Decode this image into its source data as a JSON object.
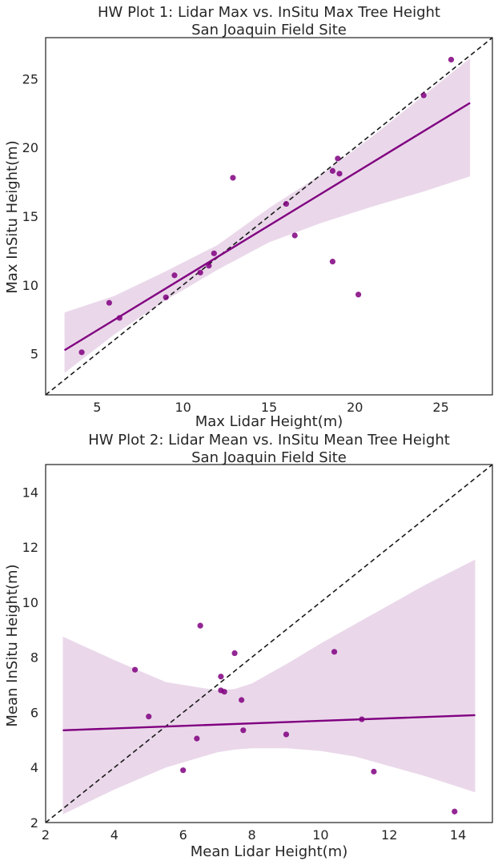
{
  "colors": {
    "accent": "#800080",
    "band": "#ead8ea",
    "identity_line": "#1a1a1a",
    "text": "#262626"
  },
  "chart_data": [
    {
      "type": "scatter",
      "title": "HW Plot 1: Lidar Max vs. InSitu Max Tree Height",
      "subtitle": "San Joaquin Field Site",
      "xlabel": "Max Lidar Height(m)",
      "ylabel": "Max InSitu Height(m)",
      "xlim": [
        2,
        28
      ],
      "ylim": [
        2,
        28
      ],
      "xticks": [
        5,
        10,
        15,
        20,
        25
      ],
      "yticks": [
        5,
        10,
        15,
        20,
        25
      ],
      "grid": false,
      "reference_line": "y = x (dashed)",
      "points": [
        {
          "x": 4.1,
          "y": 5.1
        },
        {
          "x": 5.7,
          "y": 8.7
        },
        {
          "x": 6.3,
          "y": 7.6
        },
        {
          "x": 9.0,
          "y": 9.1
        },
        {
          "x": 9.5,
          "y": 10.7
        },
        {
          "x": 11.0,
          "y": 10.9
        },
        {
          "x": 11.5,
          "y": 11.4
        },
        {
          "x": 11.8,
          "y": 12.3
        },
        {
          "x": 12.9,
          "y": 17.8
        },
        {
          "x": 16.0,
          "y": 15.9
        },
        {
          "x": 16.5,
          "y": 13.6
        },
        {
          "x": 18.7,
          "y": 11.7
        },
        {
          "x": 18.7,
          "y": 18.3
        },
        {
          "x": 19.0,
          "y": 19.2
        },
        {
          "x": 19.1,
          "y": 18.1
        },
        {
          "x": 20.2,
          "y": 9.3
        },
        {
          "x": 24.0,
          "y": 23.8
        },
        {
          "x": 25.6,
          "y": 26.4
        }
      ],
      "regression": {
        "x": [
          3.1,
          26.7
        ],
        "y": [
          5.25,
          23.25
        ]
      },
      "ci_band": {
        "x": [
          3.1,
          6,
          9,
          12,
          15,
          18,
          21,
          24,
          26.7
        ],
        "lower": [
          3.6,
          6.4,
          8.9,
          11.1,
          13.1,
          14.5,
          15.7,
          16.8,
          17.9
        ],
        "upper": [
          8.0,
          9.2,
          11.0,
          12.9,
          15.6,
          18.0,
          20.8,
          23.8,
          26.5
        ]
      }
    },
    {
      "type": "scatter",
      "title": "HW Plot 2: Lidar Mean vs. InSitu Mean Tree Height",
      "subtitle": "San Joaquin Field Site",
      "xlabel": "Mean Lidar Height(m)",
      "ylabel": "Mean InSitu Height(m)",
      "xlim": [
        2,
        15
      ],
      "ylim": [
        2,
        15
      ],
      "xticks": [
        2,
        4,
        6,
        8,
        10,
        12,
        14
      ],
      "yticks": [
        2,
        4,
        6,
        8,
        10,
        12,
        14
      ],
      "grid": false,
      "reference_line": "y = x (dashed)",
      "points": [
        {
          "x": 4.6,
          "y": 7.55
        },
        {
          "x": 5.0,
          "y": 5.85
        },
        {
          "x": 6.0,
          "y": 3.9
        },
        {
          "x": 6.4,
          "y": 5.05
        },
        {
          "x": 6.5,
          "y": 9.15
        },
        {
          "x": 7.1,
          "y": 7.3
        },
        {
          "x": 7.1,
          "y": 6.8
        },
        {
          "x": 7.2,
          "y": 6.75
        },
        {
          "x": 7.5,
          "y": 8.15
        },
        {
          "x": 7.7,
          "y": 6.45
        },
        {
          "x": 7.75,
          "y": 5.35
        },
        {
          "x": 9.0,
          "y": 5.2
        },
        {
          "x": 10.4,
          "y": 8.2
        },
        {
          "x": 11.2,
          "y": 5.75
        },
        {
          "x": 11.55,
          "y": 3.85
        },
        {
          "x": 13.9,
          "y": 2.4
        }
      ],
      "regression": {
        "x": [
          2.5,
          14.5
        ],
        "y": [
          5.35,
          5.9
        ]
      },
      "ci_band": {
        "x": [
          2.5,
          4,
          5.5,
          7,
          7.5,
          8,
          9,
          10,
          11,
          12,
          13,
          14.5
        ],
        "lower": [
          2.3,
          3.2,
          4.0,
          4.55,
          4.65,
          4.7,
          4.7,
          4.6,
          4.4,
          4.05,
          3.7,
          3.1
        ],
        "upper": [
          8.75,
          7.9,
          7.1,
          6.8,
          6.85,
          7.05,
          7.75,
          8.5,
          9.2,
          9.9,
          10.6,
          11.55
        ]
      }
    }
  ]
}
